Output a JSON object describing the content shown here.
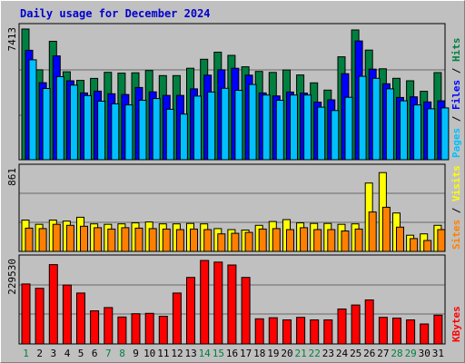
{
  "title": "Daily usage for December 2024",
  "chart_data": [
    {
      "type": "bar",
      "panel": "hits-files-pages",
      "categories": [
        "1",
        "2",
        "3",
        "4",
        "5",
        "6",
        "7",
        "8",
        "9",
        "10",
        "11",
        "12",
        "13",
        "14",
        "15",
        "16",
        "17",
        "18",
        "19",
        "20",
        "21",
        "22",
        "23",
        "24",
        "25",
        "26",
        "27",
        "28",
        "29",
        "30",
        "31"
      ],
      "ylim": [
        0,
        7413
      ],
      "ytick_label": "7413",
      "legend": [
        {
          "text": "Pages",
          "color": "#00c0ff"
        },
        {
          "text": " / ",
          "color": "#000000"
        },
        {
          "text": "Files",
          "color": "#0000ff"
        },
        {
          "text": " / ",
          "color": "#000000"
        },
        {
          "text": "Hits",
          "color": "#008040"
        }
      ],
      "series": [
        {
          "name": "Hits",
          "color": "#008040",
          "values": [
            7413,
            5100,
            6720,
            4990,
            4500,
            4610,
            4960,
            4910,
            4930,
            5060,
            4770,
            4770,
            5190,
            5700,
            6100,
            5920,
            5270,
            5010,
            4950,
            5090,
            4810,
            4360,
            3950,
            5840,
            7360,
            6220,
            5160,
            4620,
            4480,
            3880,
            4940
          ]
        },
        {
          "name": "Files",
          "color": "#0000ff",
          "values": [
            6210,
            4370,
            5890,
            4480,
            3790,
            3890,
            3740,
            3700,
            4100,
            3850,
            3650,
            3650,
            4020,
            4800,
            5100,
            5190,
            4800,
            3790,
            3620,
            3840,
            3780,
            3270,
            3400,
            4880,
            6740,
            5140,
            4310,
            3530,
            3570,
            3280,
            3340
          ]
        },
        {
          "name": "Pages",
          "color": "#00c0ff",
          "values": [
            5670,
            4040,
            4710,
            4230,
            3640,
            3320,
            3170,
            3110,
            3370,
            3470,
            2860,
            2590,
            3610,
            3840,
            4050,
            3940,
            4270,
            3670,
            3370,
            3670,
            3670,
            2980,
            2790,
            3540,
            4730,
            4620,
            4020,
            3340,
            3110,
            2890,
            2940
          ]
        }
      ]
    },
    {
      "type": "bar",
      "panel": "visits-sites",
      "categories": [
        "1",
        "2",
        "3",
        "4",
        "5",
        "6",
        "7",
        "8",
        "9",
        "10",
        "11",
        "12",
        "13",
        "14",
        "15",
        "16",
        "17",
        "18",
        "19",
        "20",
        "21",
        "22",
        "23",
        "24",
        "25",
        "26",
        "27",
        "28",
        "29",
        "30",
        "31"
      ],
      "ylim": [
        0,
        861
      ],
      "ytick_label": "861",
      "legend": [
        {
          "text": "Sites",
          "color": "#ff8000"
        },
        {
          "text": " / ",
          "color": "#000000"
        },
        {
          "text": "Visits",
          "color": "#ffff00"
        }
      ],
      "series": [
        {
          "name": "Visits",
          "color": "#ffff00",
          "values": [
            330,
            285,
            330,
            320,
            360,
            290,
            285,
            290,
            300,
            310,
            290,
            290,
            295,
            290,
            240,
            230,
            225,
            275,
            315,
            335,
            300,
            295,
            295,
            285,
            290,
            720,
            830,
            405,
            170,
            185,
            275
          ]
        },
        {
          "name": "Sites",
          "color": "#ff8000",
          "values": [
            245,
            240,
            285,
            275,
            265,
            250,
            235,
            250,
            245,
            240,
            235,
            230,
            235,
            230,
            185,
            190,
            200,
            235,
            240,
            230,
            250,
            230,
            230,
            215,
            235,
            415,
            465,
            255,
            135,
            115,
            230
          ]
        }
      ]
    },
    {
      "type": "bar",
      "panel": "kbytes",
      "categories": [
        "1",
        "2",
        "3",
        "4",
        "5",
        "6",
        "7",
        "8",
        "9",
        "10",
        "11",
        "12",
        "13",
        "14",
        "15",
        "16",
        "17",
        "18",
        "19",
        "20",
        "21",
        "22",
        "23",
        "24",
        "25",
        "26",
        "27",
        "28",
        "29",
        "30",
        "31"
      ],
      "ylim": [
        0,
        229530
      ],
      "ytick_label": "229530",
      "legend": [
        {
          "text": "KBytes",
          "color": "#ff0000"
        }
      ],
      "series": [
        {
          "name": "KBytes",
          "color": "#ff0000",
          "values": [
            165000,
            153000,
            218000,
            162000,
            140000,
            91000,
            100000,
            74000,
            83000,
            84000,
            76000,
            140000,
            183000,
            229530,
            225000,
            217000,
            183000,
            69000,
            72000,
            66000,
            73000,
            66000,
            66000,
            96000,
            107000,
            121000,
            73000,
            71000,
            66000,
            55000,
            79000
          ]
        }
      ]
    }
  ],
  "day_label_colors": [
    "#008040",
    "#000000",
    "#000000",
    "#000000",
    "#000000",
    "#000000",
    "#008040",
    "#008040",
    "#000000",
    "#000000",
    "#000000",
    "#000000",
    "#000000",
    "#008040",
    "#008040",
    "#000000",
    "#000000",
    "#000000",
    "#000000",
    "#000000",
    "#008040",
    "#008040",
    "#000000",
    "#000000",
    "#000000",
    "#000000",
    "#000000",
    "#008040",
    "#008040",
    "#000000",
    "#000000"
  ]
}
